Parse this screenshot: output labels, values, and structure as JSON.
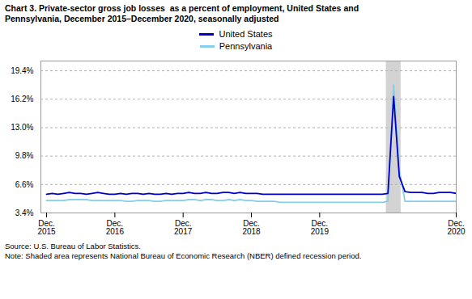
{
  "chart_data": {
    "type": "line",
    "title": "Chart 3. Private-sector gross job losses  as a percent of employment, United States and",
    "subtitle": "Pennsylvania, December 2015–December 2020, seasonally adjusted",
    "categories": [
      "Dec.\n2015",
      null,
      null,
      null,
      null,
      null,
      null,
      null,
      null,
      null,
      null,
      null,
      "Dec.\n2016",
      null,
      null,
      null,
      null,
      null,
      null,
      null,
      null,
      null,
      null,
      null,
      "Dec.\n2017",
      null,
      null,
      null,
      null,
      null,
      null,
      null,
      null,
      null,
      null,
      null,
      "Dec.\n2018",
      null,
      null,
      null,
      null,
      null,
      null,
      null,
      null,
      null,
      null,
      null,
      "Dec.\n2019",
      null,
      null,
      null,
      null,
      null,
      null,
      null,
      null,
      null,
      null,
      null,
      null,
      null,
      null,
      null,
      null,
      null,
      null,
      null,
      null,
      null,
      null,
      null,
      "Dec.\n2020"
    ],
    "series": [
      {
        "name": "United States",
        "color": "#0000cc",
        "values": [
          5.5,
          5.6,
          5.5,
          5.6,
          5.7,
          5.6,
          5.6,
          5.5,
          5.6,
          5.7,
          5.6,
          5.5,
          5.5,
          5.6,
          5.5,
          5.6,
          5.6,
          5.5,
          5.6,
          5.5,
          5.5,
          5.6,
          5.5,
          5.6,
          5.6,
          5.7,
          5.6,
          5.6,
          5.7,
          5.6,
          5.6,
          5.7,
          5.7,
          5.6,
          5.7,
          5.6,
          5.6,
          5.6,
          5.5,
          5.5,
          5.5,
          5.5,
          5.5,
          5.5,
          5.5,
          5.5,
          5.5,
          5.5,
          5.5,
          5.5,
          5.5,
          5.5,
          5.5,
          5.5,
          5.5,
          5.5,
          5.5,
          5.5,
          5.5,
          5.5,
          5.6,
          16.5,
          7.5,
          5.8,
          5.7,
          5.7,
          5.7,
          5.6,
          5.6,
          5.7,
          5.7,
          5.7,
          5.6
        ]
      },
      {
        "name": "Pennsylvania",
        "color": "#87ceeb",
        "values": [
          4.8,
          4.8,
          4.8,
          4.8,
          4.9,
          4.9,
          4.9,
          4.9,
          4.8,
          4.8,
          4.8,
          4.8,
          4.8,
          4.8,
          4.7,
          4.7,
          4.8,
          4.8,
          4.8,
          4.7,
          4.7,
          4.8,
          4.8,
          4.8,
          4.8,
          4.9,
          4.9,
          4.8,
          4.9,
          4.9,
          4.8,
          4.8,
          4.9,
          4.8,
          4.9,
          4.8,
          4.8,
          4.7,
          4.7,
          4.7,
          4.7,
          4.6,
          4.6,
          4.6,
          4.6,
          4.6,
          4.6,
          4.6,
          4.6,
          4.6,
          4.6,
          4.6,
          4.6,
          4.6,
          4.6,
          4.6,
          4.6,
          4.6,
          4.6,
          4.6,
          4.7,
          17.8,
          8.2,
          4.7,
          4.7,
          4.7,
          4.7,
          4.7,
          4.7,
          4.7,
          4.7,
          4.7,
          4.7
        ]
      }
    ],
    "shaded": {
      "from": 60,
      "to": 62,
      "color": "#d3d3d3"
    },
    "ylim": [
      3.4,
      20.5
    ],
    "yticks": [
      {
        "value": 3.4,
        "label": "3.4%"
      },
      {
        "value": 6.6,
        "label": "6.6%"
      },
      {
        "value": 9.8,
        "label": "9.8%"
      },
      {
        "value": 13.0,
        "label": "13.0%"
      },
      {
        "value": 16.2,
        "label": "16.2%"
      },
      {
        "value": 19.4,
        "label": "19.4%"
      }
    ],
    "grid": true,
    "legend": "top",
    "source": "Source: U.S. Bureau of Labor Statistics.",
    "note": "Note: Shaded area represents National Bureau of Economic Research (NBER) defined recession period."
  }
}
